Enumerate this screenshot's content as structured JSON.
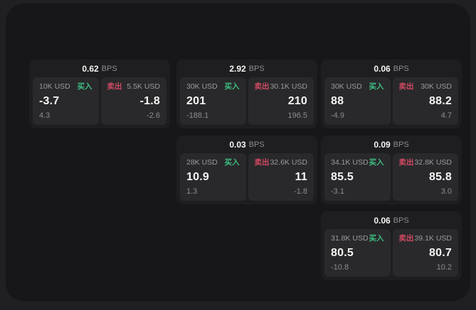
{
  "colors": {
    "page_bg": "#202022",
    "panel_bg": "#171719",
    "card_bg": "#1e1e20",
    "tile_bg": "#29292b",
    "buy_accent": "#3dbd81",
    "sell_accent": "#d04a63",
    "value_text": "#f5f5f5",
    "label_text": "#9b9ba0",
    "muted_text": "#8d8d92"
  },
  "cards": [
    {
      "bps_value": "0.62",
      "bps_unit": "BPS",
      "buy": {
        "amount": "10K USD",
        "label": "买入",
        "value": "-3.7",
        "delta": "4.3"
      },
      "sell": {
        "label": "卖出",
        "amount": "5.5K USD",
        "value": "-1.8",
        "delta": "-2.6"
      }
    },
    {
      "bps_value": "2.92",
      "bps_unit": "BPS",
      "buy": {
        "amount": "30K USD",
        "label": "买入",
        "value": "201",
        "delta": "-188.1"
      },
      "sell": {
        "label": "卖出",
        "amount": "30.1K USD",
        "value": "210",
        "delta": "196.5"
      }
    },
    {
      "bps_value": "0.06",
      "bps_unit": "BPS",
      "buy": {
        "amount": "30K USD",
        "label": "买入",
        "value": "88",
        "delta": "-4.9"
      },
      "sell": {
        "label": "卖出",
        "amount": "30K USD",
        "value": "88.2",
        "delta": "4.7"
      }
    },
    {
      "bps_value": "0.03",
      "bps_unit": "BPS",
      "buy": {
        "amount": "28K USD",
        "label": "买入",
        "value": "10.9",
        "delta": "1.3"
      },
      "sell": {
        "label": "卖出",
        "amount": "32.6K USD",
        "value": "11",
        "delta": "-1.8"
      }
    },
    {
      "bps_value": "0.09",
      "bps_unit": "BPS",
      "buy": {
        "amount": "34.1K USD",
        "label": "买入",
        "value": "85.5",
        "delta": "-3.1"
      },
      "sell": {
        "label": "卖出",
        "amount": "32.8K USD",
        "value": "85.8",
        "delta": "3.0"
      }
    },
    {
      "bps_value": "0.06",
      "bps_unit": "BPS",
      "buy": {
        "amount": "31.8K USD",
        "label": "买入",
        "value": "80.5",
        "delta": "-10.8"
      },
      "sell": {
        "label": "卖出",
        "amount": "39.1K USD",
        "value": "80.7",
        "delta": "10.2"
      }
    }
  ]
}
